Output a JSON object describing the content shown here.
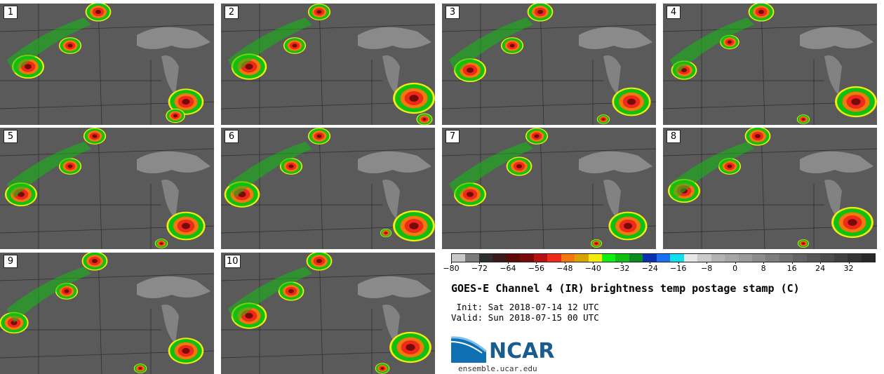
{
  "panels": [
    {
      "label": "1"
    },
    {
      "label": "2"
    },
    {
      "label": "3"
    },
    {
      "label": "4"
    },
    {
      "label": "5"
    },
    {
      "label": "6"
    },
    {
      "label": "7"
    },
    {
      "label": "8"
    },
    {
      "label": "9"
    },
    {
      "label": "10"
    }
  ],
  "colorbar": {
    "ticks": [
      "−80",
      "−72",
      "−64",
      "−56",
      "−48",
      "−40",
      "−32",
      "−24",
      "−16",
      "−8",
      "0",
      "8",
      "16",
      "24",
      "32"
    ],
    "colors": [
      "#c8c8c8",
      "#7a7a7a",
      "#2e2e2e",
      "#3c1a1a",
      "#5c0a0a",
      "#7a0a0a",
      "#b81111",
      "#ee2a1b",
      "#f5780e",
      "#d9a300",
      "#f4ea10",
      "#10f010",
      "#10c010",
      "#0c8b20",
      "#0a30b0",
      "#1a6ff0",
      "#10e0ee",
      "#e6e6e6",
      "#cbcbcb",
      "#b3b3b3",
      "#a6a6a6",
      "#9a9a9a",
      "#8c8c8c",
      "#7e7e7e",
      "#707070",
      "#646464",
      "#585858",
      "#4c4c4c",
      "#404040",
      "#343434",
      "#282828"
    ]
  },
  "title": "GOES-E Channel 4 (IR) brightness temp postage stamp (C)",
  "init": " Init: Sat 2018-07-14 12 UTC",
  "valid": "Valid: Sun 2018-07-15 00 UTC",
  "logo": {
    "text": "NCAR"
  },
  "site": "ensemble.ucar.edu"
}
